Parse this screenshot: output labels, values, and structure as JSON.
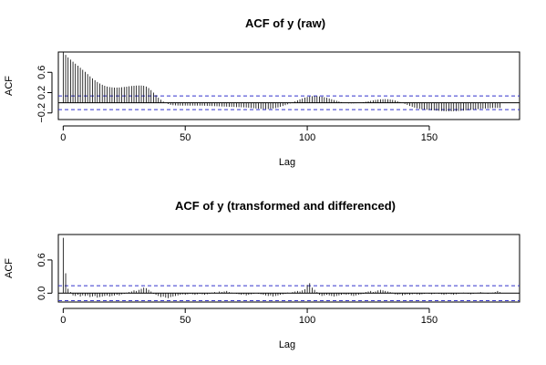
{
  "chart_data": [
    {
      "type": "bar",
      "subtype": "acf",
      "title": "ACF of y (raw)",
      "xlabel": "Lag",
      "ylabel": "ACF",
      "xlim": [
        -2,
        187
      ],
      "ylim": [
        -0.33,
        1.0
      ],
      "x_ticks": [
        0,
        50,
        100,
        150
      ],
      "x_tick_labels": [
        "0",
        "50",
        "100",
        "150"
      ],
      "y_ticks": [
        -0.2,
        0.2,
        0.6
      ],
      "y_tick_labels": [
        "−0.2",
        "0.2",
        "0.6"
      ],
      "confidence_bound": 0.135,
      "colors": {
        "bars": "#000000",
        "zero_line": "#000000",
        "confidence": "#3333cc"
      },
      "acf": [
        1.0,
        0.943,
        0.893,
        0.85,
        0.81,
        0.77,
        0.73,
        0.69,
        0.65,
        0.61,
        0.565,
        0.52,
        0.48,
        0.445,
        0.41,
        0.38,
        0.355,
        0.335,
        0.32,
        0.31,
        0.304,
        0.3,
        0.3,
        0.302,
        0.306,
        0.312,
        0.318,
        0.325,
        0.331,
        0.336,
        0.339,
        0.34,
        0.34,
        0.335,
        0.32,
        0.29,
        0.25,
        0.2,
        0.15,
        0.1,
        0.06,
        0.025,
        -0.005,
        -0.025,
        -0.04,
        -0.048,
        -0.052,
        -0.054,
        -0.055,
        -0.055,
        -0.055,
        -0.055,
        -0.055,
        -0.055,
        -0.055,
        -0.055,
        -0.056,
        -0.057,
        -0.058,
        -0.06,
        -0.062,
        -0.064,
        -0.066,
        -0.068,
        -0.07,
        -0.072,
        -0.074,
        -0.076,
        -0.078,
        -0.08,
        -0.082,
        -0.084,
        -0.086,
        -0.088,
        -0.09,
        -0.093,
        -0.097,
        -0.102,
        -0.107,
        -0.112,
        -0.117,
        -0.121,
        -0.124,
        -0.125,
        -0.124,
        -0.12,
        -0.113,
        -0.104,
        -0.092,
        -0.078,
        -0.063,
        -0.047,
        -0.03,
        -0.012,
        0.007,
        0.027,
        0.047,
        0.067,
        0.085,
        0.101,
        0.114,
        0.124,
        0.13,
        0.132,
        0.131,
        0.127,
        0.12,
        0.11,
        0.098,
        0.085,
        0.07,
        0.055,
        0.04,
        0.026,
        0.013,
        0.002,
        -0.006,
        -0.01,
        -0.012,
        -0.011,
        -0.008,
        -0.003,
        0.004,
        0.012,
        0.021,
        0.03,
        0.039,
        0.048,
        0.056,
        0.063,
        0.068,
        0.071,
        0.072,
        0.07,
        0.065,
        0.057,
        0.046,
        0.032,
        0.016,
        -0.002,
        -0.022,
        -0.042,
        -0.062,
        -0.08,
        -0.096,
        -0.109,
        -0.119,
        -0.127,
        -0.133,
        -0.138,
        -0.142,
        -0.146,
        -0.15,
        -0.154,
        -0.158,
        -0.162,
        -0.165,
        -0.167,
        -0.168,
        -0.168,
        -0.167,
        -0.165,
        -0.162,
        -0.158,
        -0.154,
        -0.15,
        -0.145,
        -0.14,
        -0.135,
        -0.13,
        -0.125,
        -0.12,
        -0.116,
        -0.112,
        -0.109,
        -0.106,
        -0.104,
        -0.102,
        -0.101,
        -0.1
      ]
    },
    {
      "type": "bar",
      "subtype": "acf",
      "title": "ACF of y (transformed and differenced)",
      "xlabel": "Lag",
      "ylabel": "ACF",
      "xlim": [
        -2,
        187
      ],
      "ylim": [
        -0.16,
        1.06
      ],
      "x_ticks": [
        0,
        50,
        100,
        150
      ],
      "x_tick_labels": [
        "0",
        "50",
        "100",
        "150"
      ],
      "y_ticks": [
        0.0,
        0.6
      ],
      "y_tick_labels": [
        "0.0",
        "0.6"
      ],
      "confidence_bound": 0.135,
      "colors": {
        "bars": "#000000",
        "zero_line": "#000000",
        "confidence": "#3333cc"
      },
      "acf": [
        1.0,
        0.36,
        0.08,
        0.02,
        -0.04,
        -0.05,
        -0.03,
        -0.06,
        -0.04,
        -0.05,
        -0.04,
        -0.07,
        -0.06,
        -0.05,
        -0.08,
        -0.07,
        -0.06,
        -0.05,
        -0.04,
        -0.06,
        -0.05,
        -0.04,
        -0.03,
        -0.04,
        -0.02,
        -0.01,
        0.01,
        0.02,
        0.03,
        0.05,
        0.04,
        0.06,
        0.08,
        0.1,
        0.09,
        0.06,
        0.03,
        -0.01,
        -0.03,
        -0.05,
        -0.07,
        -0.06,
        -0.08,
        -0.09,
        -0.07,
        -0.06,
        -0.05,
        -0.04,
        -0.03,
        -0.02,
        -0.03,
        -0.02,
        -0.01,
        -0.02,
        -0.03,
        -0.02,
        -0.01,
        -0.02,
        -0.03,
        -0.02,
        -0.01,
        0.01,
        0.02,
        0.01,
        0.03,
        0.02,
        0.03,
        0.04,
        0.02,
        0.01,
        0.0,
        -0.01,
        -0.02,
        -0.03,
        -0.02,
        -0.04,
        -0.03,
        -0.02,
        -0.01,
        0.0,
        -0.01,
        -0.02,
        -0.03,
        -0.04,
        -0.05,
        -0.04,
        -0.06,
        -0.05,
        -0.04,
        -0.03,
        -0.02,
        -0.01,
        0.01,
        0.0,
        0.02,
        0.03,
        0.04,
        0.03,
        0.05,
        0.07,
        0.15,
        0.18,
        0.1,
        0.06,
        0.02,
        -0.03,
        -0.05,
        -0.04,
        -0.03,
        -0.04,
        -0.05,
        -0.06,
        -0.05,
        -0.04,
        -0.03,
        -0.02,
        -0.03,
        -0.02,
        -0.04,
        -0.05,
        -0.04,
        -0.03,
        -0.02,
        -0.01,
        0.02,
        0.03,
        0.04,
        0.02,
        0.03,
        0.05,
        0.06,
        0.05,
        0.04,
        0.03,
        0.02,
        0.01,
        -0.02,
        -0.03,
        -0.02,
        -0.04,
        -0.03,
        -0.02,
        -0.03,
        -0.02,
        -0.01,
        -0.02,
        -0.03,
        -0.02,
        -0.01,
        0.0,
        -0.01,
        -0.02,
        -0.01,
        0.0,
        -0.01,
        -0.02,
        -0.03,
        -0.02,
        -0.01,
        -0.02,
        -0.03,
        -0.02,
        -0.01,
        0.0,
        0.01,
        0.0,
        -0.01,
        -0.02,
        -0.01,
        0.0,
        0.01,
        0.02,
        0.01,
        0.0,
        -0.01,
        0.0,
        0.01,
        0.02,
        0.04,
        0.02
      ]
    }
  ]
}
